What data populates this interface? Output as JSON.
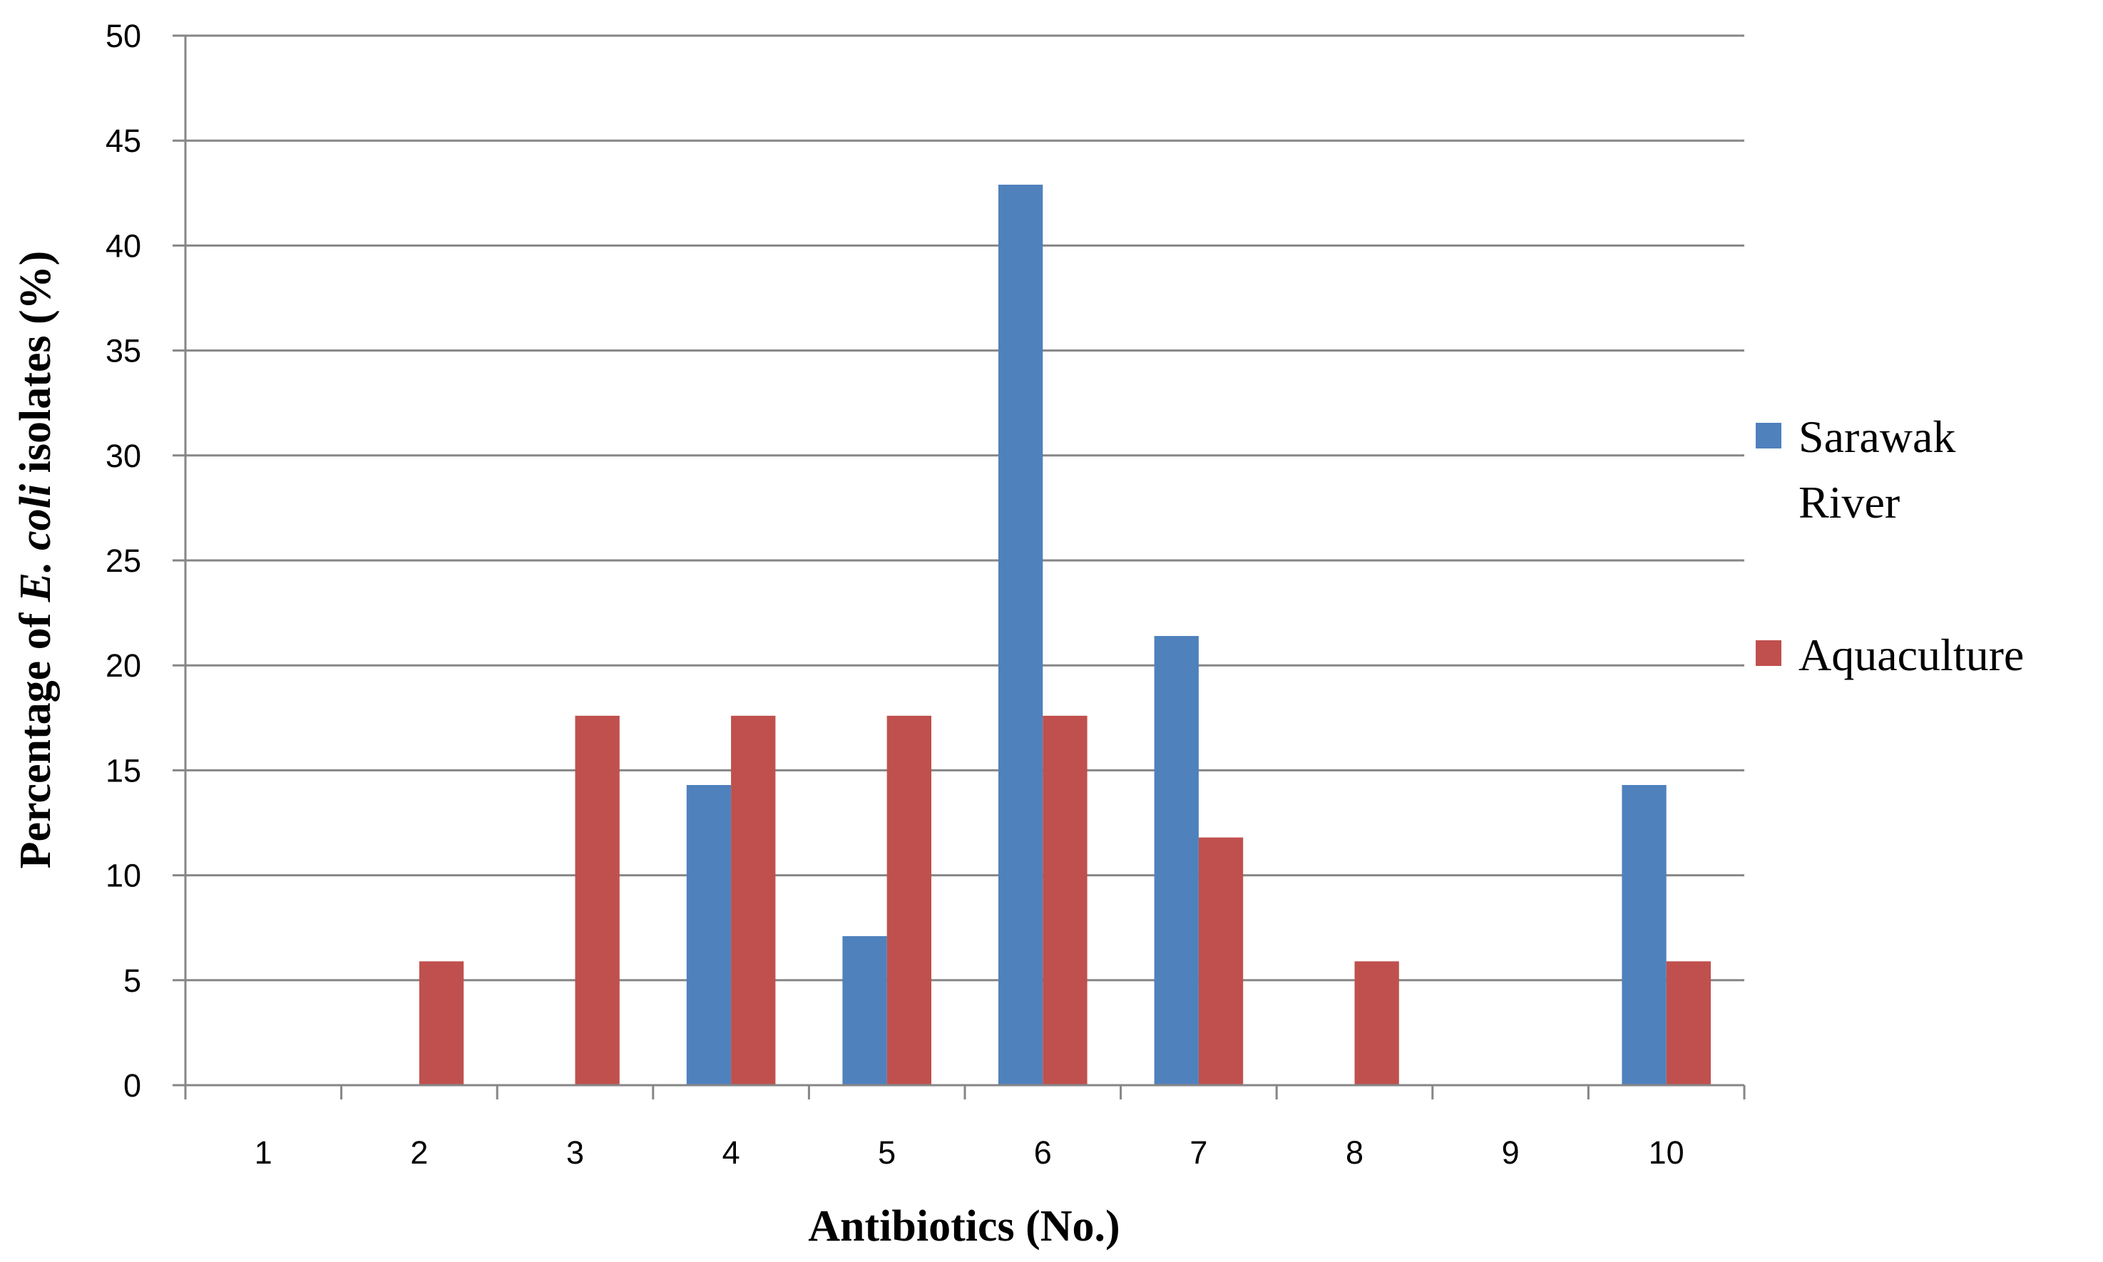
{
  "chart_data": {
    "type": "bar",
    "title": "",
    "xlabel": "Antibiotics (No.)",
    "ylabel_parts": [
      "Percentage of ",
      "E. coli",
      " isolates (%)"
    ],
    "categories": [
      "1",
      "2",
      "3",
      "4",
      "5",
      "6",
      "7",
      "8",
      "9",
      "10"
    ],
    "ylim": [
      0,
      50
    ],
    "ytick_step": 5,
    "grid": true,
    "legend_position": "right",
    "series": [
      {
        "name": "Sarawak River",
        "legend_lines": [
          "Sarawak",
          "River"
        ],
        "color": "#4F81BD",
        "values": [
          0,
          0,
          0,
          14.3,
          7.1,
          42.9,
          21.4,
          0,
          0,
          14.3
        ]
      },
      {
        "name": "Aquaculture",
        "legend_lines": [
          "Aquaculture"
        ],
        "color": "#C0504D",
        "values": [
          0,
          5.9,
          17.6,
          17.6,
          17.6,
          17.6,
          11.8,
          5.9,
          0,
          5.9
        ]
      }
    ]
  }
}
